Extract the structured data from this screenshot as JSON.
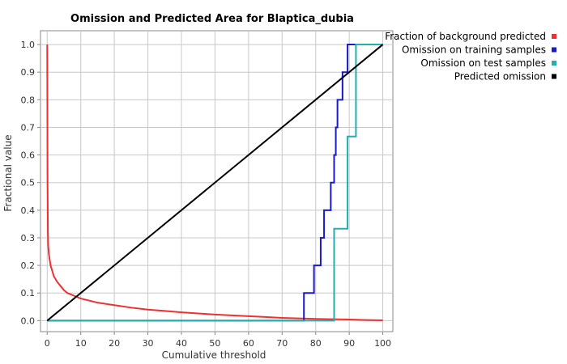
{
  "chart_data": {
    "type": "line",
    "title": "Omission and Predicted Area for Blaptica_dubia",
    "xlabel": "Cumulative threshold",
    "ylabel": "Fractional value",
    "xlim": [
      -2,
      103
    ],
    "ylim": [
      -0.04,
      1.05
    ],
    "x_ticks": [
      "0",
      "10",
      "20",
      "30",
      "40",
      "50",
      "60",
      "70",
      "80",
      "90",
      "100"
    ],
    "y_ticks": [
      "0.0",
      "0.1",
      "0.2",
      "0.3",
      "0.4",
      "0.5",
      "0.6",
      "0.7",
      "0.8",
      "0.9",
      "1.0"
    ],
    "grid": true,
    "legend_position": "top-right",
    "series": [
      {
        "name": "Fraction of background predicted",
        "color": "#f03030",
        "points": [
          [
            0,
            1.0
          ],
          [
            0.1,
            0.5
          ],
          [
            0.2,
            0.32
          ],
          [
            0.3,
            0.27
          ],
          [
            0.5,
            0.24
          ],
          [
            1,
            0.2
          ],
          [
            2,
            0.16
          ],
          [
            3,
            0.14
          ],
          [
            4,
            0.125
          ],
          [
            5,
            0.11
          ],
          [
            6,
            0.1
          ],
          [
            8,
            0.09
          ],
          [
            10,
            0.08
          ],
          [
            12,
            0.074
          ],
          [
            15,
            0.065
          ],
          [
            20,
            0.056
          ],
          [
            25,
            0.047
          ],
          [
            30,
            0.04
          ],
          [
            35,
            0.035
          ],
          [
            40,
            0.03
          ],
          [
            45,
            0.026
          ],
          [
            50,
            0.022
          ],
          [
            55,
            0.019
          ],
          [
            60,
            0.016
          ],
          [
            65,
            0.013
          ],
          [
            70,
            0.01
          ],
          [
            75,
            0.008
          ],
          [
            80,
            0.006
          ],
          [
            85,
            0.005
          ],
          [
            90,
            0.004
          ],
          [
            95,
            0.002
          ],
          [
            100,
            0.001
          ]
        ]
      },
      {
        "name": "Omission on training samples",
        "color": "#1a1acc",
        "points": [
          [
            0,
            0
          ],
          [
            76.5,
            0
          ],
          [
            76.5,
            0.1
          ],
          [
            79.5,
            0.1
          ],
          [
            79.5,
            0.2
          ],
          [
            81.5,
            0.2
          ],
          [
            81.5,
            0.3
          ],
          [
            82.5,
            0.3
          ],
          [
            82.5,
            0.4
          ],
          [
            84.5,
            0.4
          ],
          [
            84.5,
            0.5
          ],
          [
            85.5,
            0.5
          ],
          [
            85.5,
            0.6
          ],
          [
            86,
            0.6
          ],
          [
            86,
            0.7
          ],
          [
            86.5,
            0.7
          ],
          [
            86.5,
            0.8
          ],
          [
            88,
            0.8
          ],
          [
            88,
            0.9
          ],
          [
            89.5,
            0.9
          ],
          [
            89.5,
            1.0
          ],
          [
            100,
            1.0
          ]
        ]
      },
      {
        "name": "Omission on test samples",
        "color": "#20b0b0",
        "points": [
          [
            0,
            0
          ],
          [
            85.5,
            0
          ],
          [
            85.5,
            0.333
          ],
          [
            89.5,
            0.333
          ],
          [
            89.5,
            0.667
          ],
          [
            92,
            0.667
          ],
          [
            92,
            1.0
          ],
          [
            100,
            1.0
          ]
        ]
      },
      {
        "name": "Predicted omission",
        "color": "#000000",
        "points": [
          [
            0,
            0
          ],
          [
            100,
            1.0
          ]
        ]
      }
    ]
  }
}
